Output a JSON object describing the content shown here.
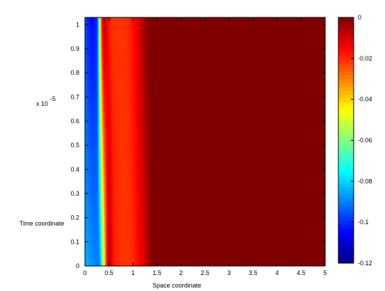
{
  "chart_data": {
    "type": "heatmap",
    "xlabel": "Space coordinate",
    "ylabel": "Time coordinate",
    "y_exponent_label": "x 10",
    "y_exponent": "-5",
    "x_ticks": [
      "0",
      "0.5",
      "1",
      "1.5",
      "2",
      "2.5",
      "3",
      "3.5",
      "4",
      "4.5",
      "5"
    ],
    "x_tick_values": [
      0,
      0.5,
      1,
      1.5,
      2,
      2.5,
      3,
      3.5,
      4,
      4.5,
      5
    ],
    "y_ticks": [
      "0",
      "0.1",
      "0.2",
      "0.3",
      "0.4",
      "0.5",
      "0.6",
      "0.7",
      "0.8",
      "0.9",
      "1"
    ],
    "y_tick_values": [
      0,
      0.1,
      0.2,
      0.3,
      0.4,
      0.5,
      0.6,
      0.7,
      0.8,
      0.9,
      1
    ],
    "xlim": [
      0,
      5
    ],
    "ylim": [
      0,
      1.03
    ],
    "colorbar": {
      "range": [
        -0.12,
        0
      ],
      "ticks": [
        "0",
        "-0.02",
        "-0.04",
        "-0.06",
        "-0.08",
        "-0.1",
        "-0.12"
      ],
      "tick_values": [
        0,
        -0.02,
        -0.04,
        -0.06,
        -0.08,
        -0.1,
        -0.12
      ],
      "colormap": "jet"
    },
    "field_profile_at_t0": {
      "x": [
        0,
        0.05,
        0.15,
        0.25,
        0.3,
        0.35,
        0.4,
        0.45,
        0.5,
        0.55,
        0.6,
        0.7,
        0.8,
        0.9,
        1.0,
        1.1,
        1.2,
        1.3,
        1.4,
        5.0
      ],
      "value": [
        -0.085,
        -0.085,
        -0.088,
        -0.09,
        -0.09,
        -0.07,
        -0.045,
        -0.02,
        -0.005,
        -0.012,
        -0.018,
        -0.02,
        -0.021,
        -0.021,
        -0.02,
        -0.016,
        -0.012,
        -0.006,
        0,
        0
      ]
    },
    "field_profile_at_t_end": {
      "x": [
        0,
        0.05,
        0.15,
        0.25,
        0.28,
        0.32,
        0.36,
        0.4,
        0.45,
        0.5,
        0.55,
        0.6,
        0.7,
        0.8,
        0.9,
        1.0,
        1.1,
        1.2,
        1.3,
        5.0
      ],
      "value": [
        -0.095,
        -0.1,
        -0.105,
        -0.1,
        -0.08,
        -0.04,
        -0.015,
        -0.006,
        -0.012,
        -0.018,
        -0.02,
        -0.021,
        -0.021,
        -0.021,
        -0.02,
        -0.016,
        -0.012,
        -0.006,
        0,
        0
      ]
    }
  }
}
